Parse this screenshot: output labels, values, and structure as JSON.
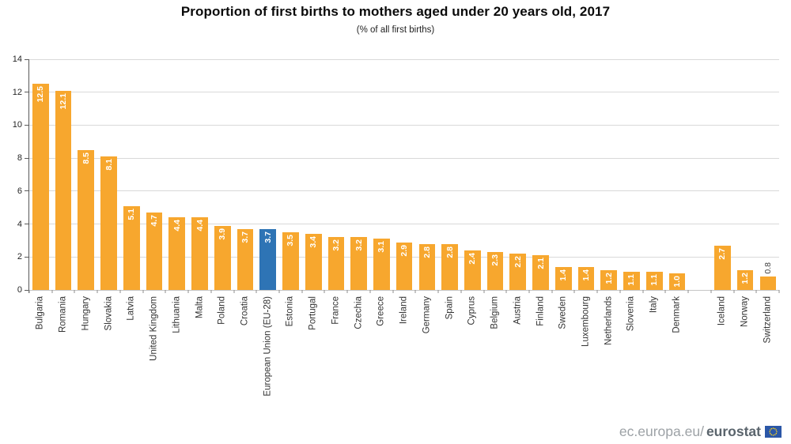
{
  "chart_data": {
    "type": "bar",
    "title": "Proportion of first births to mothers aged under 20 years old, 2017",
    "subtitle": "(% of all first births)",
    "categories": [
      "Bulgaria",
      "Romania",
      "Hungary",
      "Slovakia",
      "Latvia",
      "United Kingdom",
      "Lithuania",
      "Malta",
      "Poland",
      "Croatia",
      "European Union (EU-28)",
      "Estonia",
      "Portugal",
      "France",
      "Czechia",
      "Greece",
      "Ireland",
      "Germany",
      "Spain",
      "Cyprus",
      "Belgium",
      "Austria",
      "Finland",
      "Sweden",
      "Luxembourg",
      "Netherlands",
      "Slovenia",
      "Italy",
      "Denmark",
      "",
      "Iceland",
      "Norway",
      "Switzerland"
    ],
    "values": [
      12.5,
      12.1,
      8.5,
      8.1,
      5.1,
      4.7,
      4.4,
      4.4,
      3.9,
      3.7,
      3.7,
      3.5,
      3.4,
      3.2,
      3.2,
      3.1,
      2.9,
      2.8,
      2.8,
      2.4,
      2.3,
      2.2,
      2.1,
      1.4,
      1.4,
      1.2,
      1.1,
      1.1,
      1.0,
      null,
      2.7,
      1.2,
      0.8
    ],
    "value_label_decimals": 1,
    "xlabel": "",
    "ylabel": "",
    "ylim": [
      0,
      14
    ],
    "yticks": [
      0,
      2,
      4,
      6,
      8,
      10,
      12,
      14
    ],
    "grid": true,
    "legend_position": "none",
    "highlight_category": "European Union (EU-28)",
    "outside_label_categories": [
      "Switzerland"
    ],
    "colors": {
      "bar": "#F7A72E",
      "highlight_bar": "#2E74B5",
      "value_label_inside": "#FFFFFF",
      "value_label_outside": "#404040",
      "gridline": "#D9D9D9",
      "axis": "#595959"
    }
  },
  "footer": {
    "logo_prefix": "ec.europa.eu/",
    "logo_brand": "eurostat",
    "flag_icon": "eu-flag-icon",
    "flag_blue": "#2B57A7",
    "flag_star_yellow": "#FFD617"
  }
}
